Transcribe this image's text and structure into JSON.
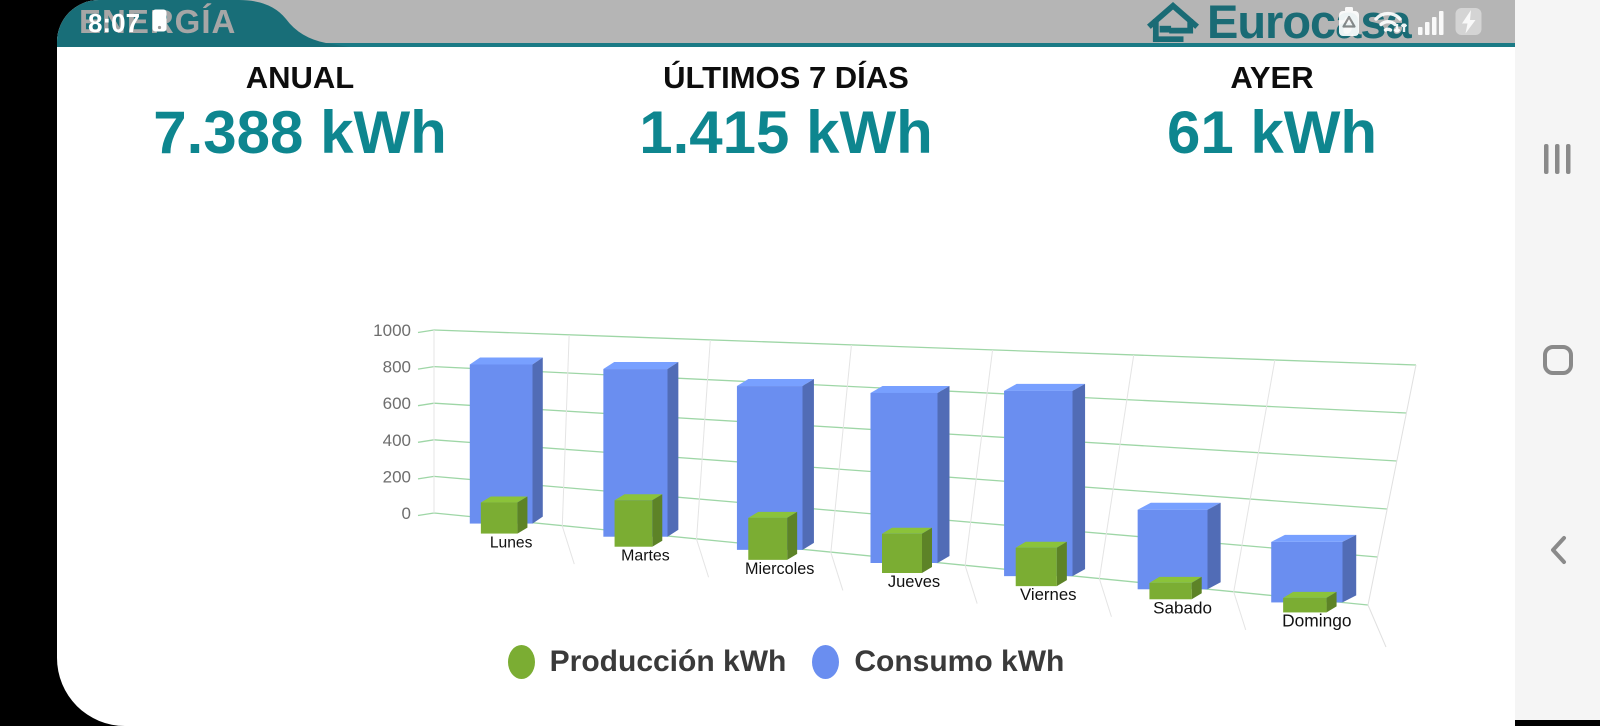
{
  "status_bar": {
    "time": "8:07",
    "icons": [
      "phone-icon",
      "battery-saver-icon",
      "wifi-icon",
      "signal-bars-icon",
      "charging-icon"
    ]
  },
  "header": {
    "tab_title": "ENERGÍA",
    "brand": "Eurocasa"
  },
  "stats": [
    {
      "label": "ANUAL",
      "value": "7.388 kWh"
    },
    {
      "label": "ÚLTIMOS 7 DÍAS",
      "value": "1.415 kWh"
    },
    {
      "label": "AYER",
      "value": "61 kWh"
    }
  ],
  "chart_data": {
    "type": "bar",
    "projection": "3d-perspective",
    "title": "",
    "xlabel": "",
    "ylabel": "",
    "categories": [
      "Lunes",
      "Martes",
      "Miercoles",
      "Jueves",
      "Viernes",
      "Sabado",
      "Domingo"
    ],
    "series": [
      {
        "name": "Producción kWh",
        "color": "#7BAD33",
        "values": [
          160,
          230,
          200,
          180,
          170,
          70,
          60
        ]
      },
      {
        "name": "Consumo kWh",
        "color": "#6A8EF0",
        "values": [
          820,
          830,
          780,
          780,
          820,
          340,
          250
        ]
      }
    ],
    "ylim": [
      0,
      1000
    ],
    "y_ticks": [
      0,
      200,
      400,
      600,
      800,
      1000
    ],
    "grid": true,
    "gridline_color": "#9ED6A6",
    "legend_position": "bottom"
  },
  "nav_bar": {
    "buttons": [
      {
        "name": "recents"
      },
      {
        "name": "home"
      },
      {
        "name": "back"
      }
    ]
  },
  "colors": {
    "header_teal": "#186E78",
    "teal_line": "#1A7A85",
    "accent_teal": "#0E868F",
    "brand_teal": "#1A6B75",
    "status_bar_gray": "#B5B5B5",
    "tab_title_gray": "#A6A6A6",
    "nav_rail_gray": "#F5F5F5"
  }
}
